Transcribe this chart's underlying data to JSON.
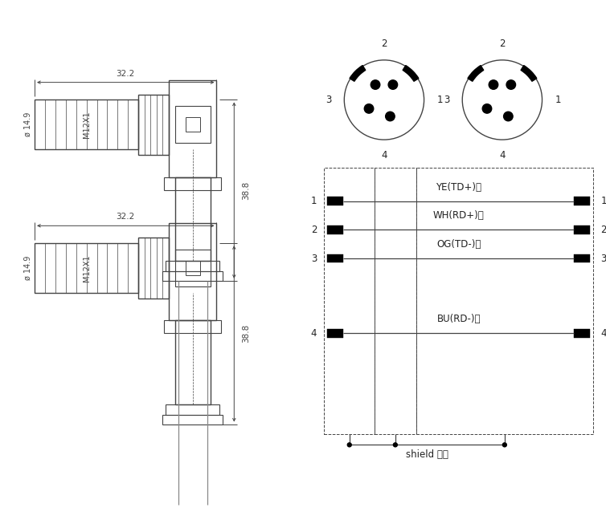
{
  "bg_color": "#ffffff",
  "line_color": "#444444",
  "dim_color": "#444444",
  "text_color": "#222222",
  "figsize": [
    7.54,
    6.53
  ],
  "dpi": 100,
  "wiring_labels": [
    "YE(TD+)黄",
    "WH(RD+)白",
    "OG(TD-)橙",
    "BU(RD-)蓝"
  ],
  "wiring_pin_nums": [
    "1",
    "2",
    "3",
    "4"
  ],
  "shield_label": "shield 屏蔽",
  "dim_32_2": "32.2",
  "dim_38_8": "38.8",
  "dim_14_9": "ø 14.9",
  "dim_m12x1": "M12X1",
  "font_size_dim": 7.5,
  "font_size_pin": 8.5,
  "font_size_wire": 8.5,
  "font_size_label": 8
}
